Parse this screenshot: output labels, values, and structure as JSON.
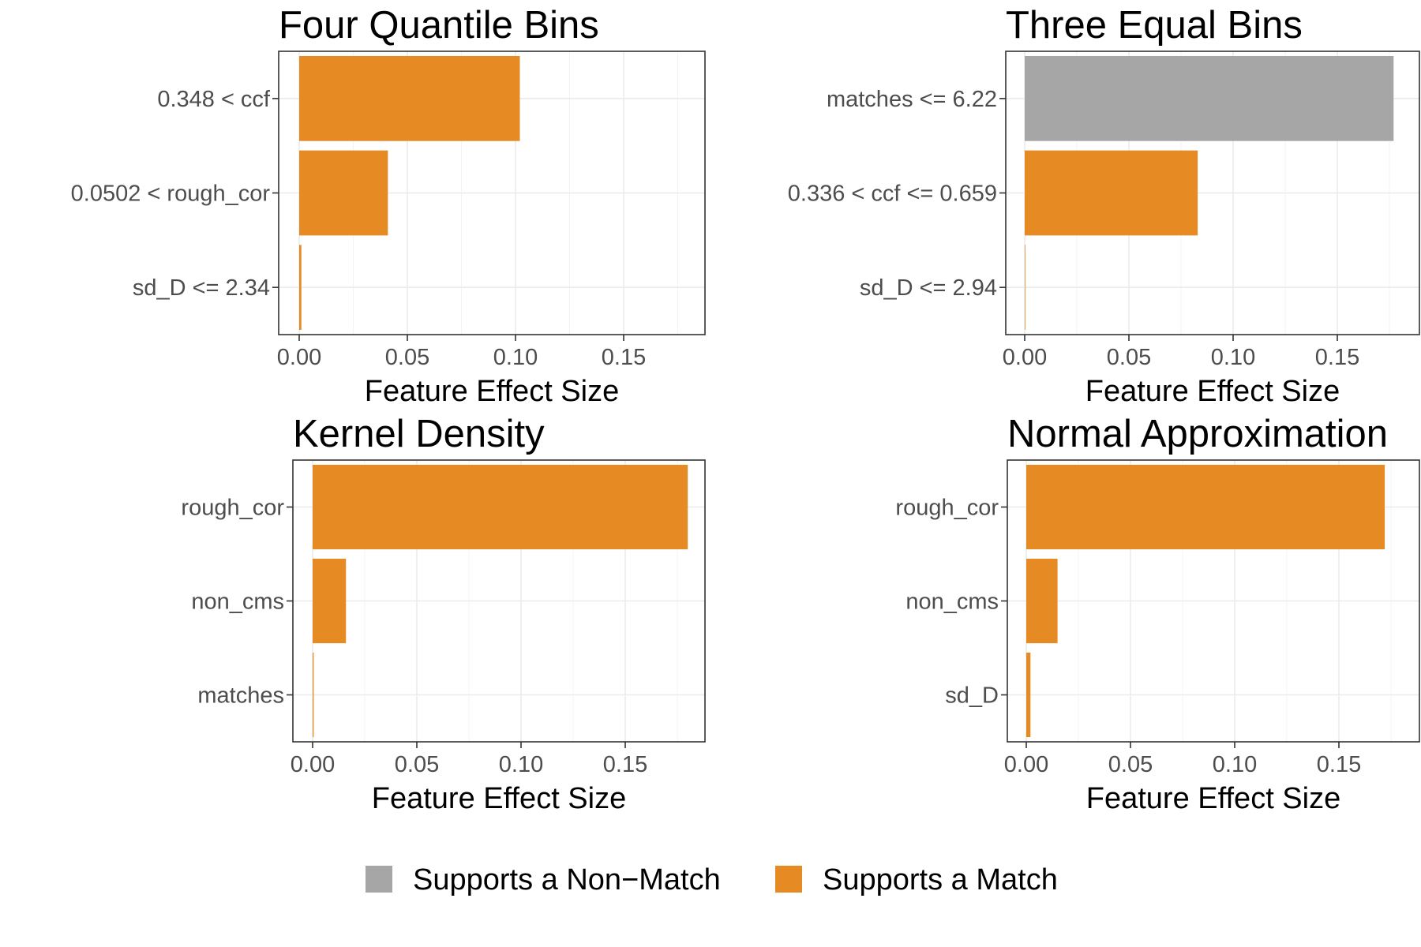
{
  "legend": {
    "items": [
      {
        "label": "Supports a Non−Match",
        "color": "#a6a6a6"
      },
      {
        "label": "Supports a Match",
        "color": "#e68a23"
      }
    ]
  },
  "chart_data": [
    {
      "type": "bar",
      "orientation": "horizontal",
      "title": "Four Quantile Bins",
      "xlabel": "Feature Effect Size",
      "ylabel": "",
      "xlim": [
        0,
        0.18
      ],
      "xticks": [
        "0.00",
        "0.05",
        "0.10",
        "0.15"
      ],
      "categories": [
        "0.348 < ccf",
        "0.0502 < rough_cor",
        "sd_D <= 2.34"
      ],
      "values": [
        0.102,
        0.041,
        0.001
      ],
      "support": [
        "Supports a Match",
        "Supports a Match",
        "Supports a Match"
      ],
      "grid": true
    },
    {
      "type": "bar",
      "orientation": "horizontal",
      "title": "Three Equal Bins",
      "xlabel": "Feature Effect Size",
      "ylabel": "",
      "xlim": [
        0,
        0.18
      ],
      "xticks": [
        "0.00",
        "0.05",
        "0.10",
        "0.15"
      ],
      "categories": [
        "matches <= 6.22",
        "0.336 < ccf <= 0.659",
        "sd_D <= 2.94"
      ],
      "values": [
        0.177,
        0.083,
        0.0003
      ],
      "support": [
        "Supports a Non−Match",
        "Supports a Match",
        "Supports a Match"
      ],
      "grid": true
    },
    {
      "type": "bar",
      "orientation": "horizontal",
      "title": "Kernel Density",
      "xlabel": "Feature Effect Size",
      "ylabel": "",
      "xlim": [
        0,
        0.18
      ],
      "xticks": [
        "0.00",
        "0.05",
        "0.10",
        "0.15"
      ],
      "categories": [
        "rough_cor",
        "non_cms",
        "matches"
      ],
      "values": [
        0.18,
        0.016,
        0.0005
      ],
      "support": [
        "Supports a Match",
        "Supports a Match",
        "Supports a Match"
      ],
      "grid": true
    },
    {
      "type": "bar",
      "orientation": "horizontal",
      "title": "Normal Approximation",
      "xlabel": "Feature Effect Size",
      "ylabel": "",
      "xlim": [
        0,
        0.18
      ],
      "xticks": [
        "0.00",
        "0.05",
        "0.10",
        "0.15"
      ],
      "categories": [
        "rough_cor",
        "non_cms",
        "sd_D"
      ],
      "values": [
        0.172,
        0.015,
        0.002
      ],
      "support": [
        "Supports a Match",
        "Supports a Match",
        "Supports a Match"
      ],
      "grid": true
    }
  ]
}
